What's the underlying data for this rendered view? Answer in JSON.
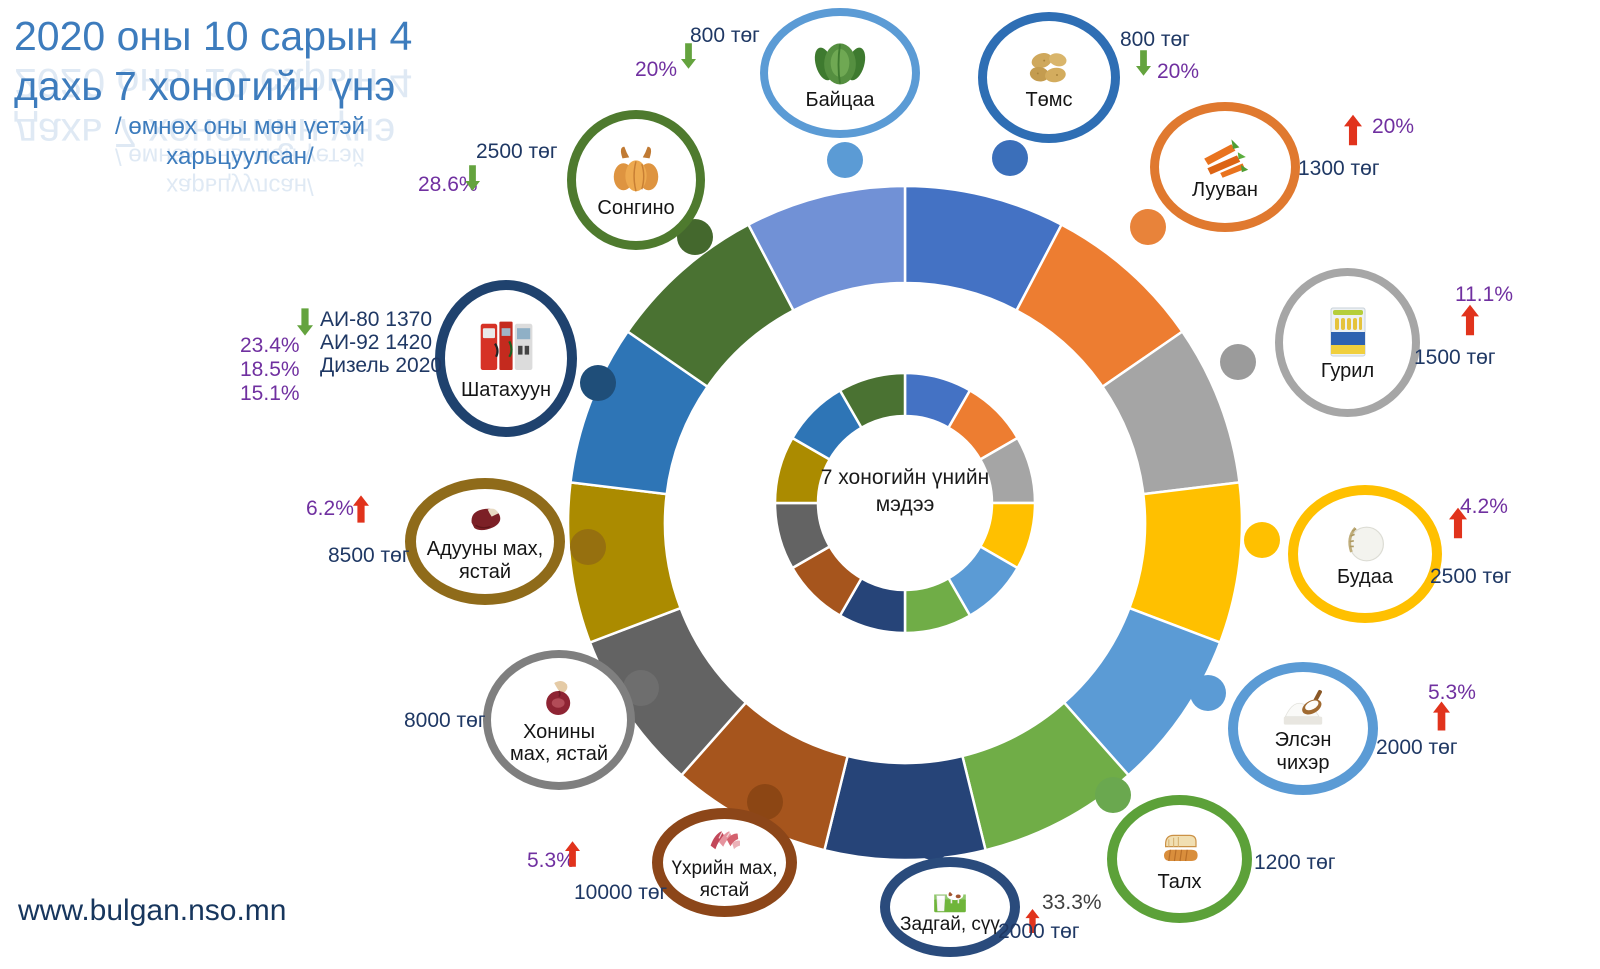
{
  "title": {
    "line1": "2020 оны 10 сарын 4",
    "line2": "дахь 7 хоногийн  үнэ",
    "subtitle_line1": "/ өмнөх оны мөн үетэй",
    "subtitle_line2": "харьцуулсан/"
  },
  "center_label": "7 хоногийн үнийн мэдээ",
  "website": "www.bulgan.nso.mn",
  "colors": {
    "title_text": "#3D7CBD",
    "price_text": "#1F3864",
    "percent_text": "#7030A0",
    "percent_dark": "#404040",
    "arrow_up": "#E1331C",
    "arrow_down": "#64A33E",
    "center_text": "#1A1A1A",
    "website_text": "#17365D"
  },
  "wheel": {
    "outer_segments": [
      "#4472C4",
      "#ED7D31",
      "#A5A5A5",
      "#FFC000",
      "#5B9BD5",
      "#70AD47",
      "#264478",
      "#A6551D",
      "#636363",
      "#AB8B00",
      "#2E75B6",
      "#4A7232",
      "#7191D6"
    ],
    "inner_segments": [
      "#4472C4",
      "#ED7D31",
      "#A5A5A5",
      "#FFC000",
      "#5B9BD5",
      "#70AD47",
      "#264478",
      "#A6551D",
      "#636363",
      "#AB8B00",
      "#2E75B6",
      "#4A7232"
    ]
  },
  "items": [
    {
      "label": "Байцаа",
      "price": "800 төг",
      "change": "20%",
      "direction": "down",
      "border_color": "#5B9BD5",
      "dot_color": "#5B9BD5",
      "icon": "cabbage-icon"
    },
    {
      "label": "Төмс",
      "price": "800 төг",
      "change": "20%",
      "direction": "down",
      "border_color": "#2E6EB4",
      "dot_color": "#3B6FBA",
      "icon": "potato-icon"
    },
    {
      "label": "Лууван",
      "price": "1300 төг",
      "change": "20%",
      "direction": "up",
      "border_color": "#E0792F",
      "dot_color": "#E8833A",
      "icon": "carrot-icon"
    },
    {
      "label": "Гурил",
      "price": "1500 төг",
      "change": "11.1%",
      "direction": "up",
      "border_color": "#A6A6A6",
      "dot_color": "#9B9B9B",
      "icon": "flour-icon"
    },
    {
      "label": "Будаа",
      "price": "2500 төг",
      "change": "4.2%",
      "direction": "up",
      "border_color": "#FFC000",
      "dot_color": "#FFC000",
      "icon": "rice-icon"
    },
    {
      "label": "Элсэн чихэр",
      "price": "2000 төг",
      "change": "5.3%",
      "direction": "up",
      "border_color": "#5B9BD5",
      "dot_color": "#5B9BD5",
      "icon": "sugar-icon"
    },
    {
      "label": "Талх",
      "price": "1200 төг",
      "direction": "none",
      "border_color": "#5CA139",
      "dot_color": "#6AA84F",
      "icon": "bread-icon"
    },
    {
      "label": "Задгай, сүү",
      "price": "2000 төг",
      "change": "33.3%",
      "direction": "up",
      "border_color": "#2A4B7C",
      "dot_color": "#264478",
      "icon": "milk-icon"
    },
    {
      "label": "Үхрийн  мах, ястай",
      "price": "10000 төг",
      "change": "5.3%",
      "direction": "up",
      "border_color": "#8C4619",
      "dot_color": "#8C4614",
      "icon": "beef-icon"
    },
    {
      "label": "Хонины мах, ястай",
      "price": "8000 төг",
      "direction": "none",
      "border_color": "#7F7F7F",
      "dot_color": "#6E6E6E",
      "icon": "mutton-icon"
    },
    {
      "label": "Адууны мах, ястай",
      "price": "8500 төг",
      "change": "6.2%",
      "direction": "up",
      "border_color": "#8F6B1A",
      "dot_color": "#96700F",
      "icon": "horse-meat-icon"
    },
    {
      "label": "Шатахуун",
      "direction": "down",
      "fuel_lines": [
        "АИ-80 1370",
        "АИ-92 1420",
        "Дизель 2020"
      ],
      "change_list": [
        "23.4%",
        "18.5%",
        "15.1%"
      ],
      "border_color": "#1F426E",
      "dot_color": "#1F4E79",
      "icon": "fuel-icon"
    },
    {
      "label": "Сонгино",
      "price": "2500 төг",
      "change": "28.6%",
      "direction": "down",
      "border_color": "#4E7A2E",
      "dot_color": "#44682D",
      "icon": "onion-icon"
    }
  ]
}
